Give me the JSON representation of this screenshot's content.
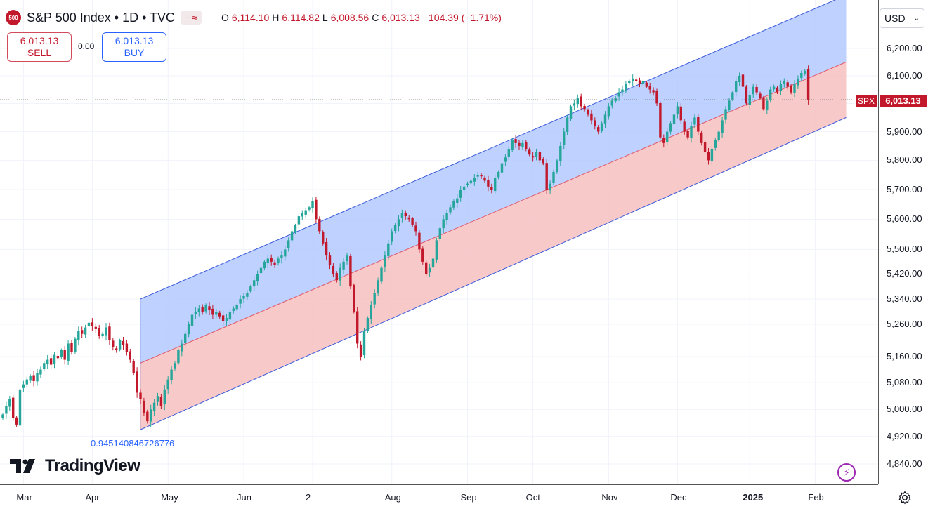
{
  "header": {
    "badge": "500",
    "title": "S&P 500 Index • 1D • TVC",
    "ohlc": [
      {
        "k": "O",
        "v": "6,114.10"
      },
      {
        "k": "H",
        "v": "6,114.82"
      },
      {
        "k": "L",
        "v": "6,008.56"
      },
      {
        "k": "C",
        "v": "6,013.13"
      }
    ],
    "change": "−104.39 (−1.71%)"
  },
  "trade": {
    "sell_price": "6,013.13",
    "sell_label": "SELL",
    "spread": "0.00",
    "buy_price": "6,013.13",
    "buy_label": "BUY"
  },
  "axis": {
    "currency": "USD",
    "symbol_tag": "SPX",
    "last_price": "6,013.13"
  },
  "regression_label": "0.945140846726776",
  "logo_text": "TradingView",
  "colors": {
    "up": "#089981",
    "down": "#f23645",
    "bull_body": "#26a69a",
    "bear_body": "#c2182b",
    "upper_channel": "#b3c9ff",
    "lower_channel": "#f7c3c3",
    "channel_line": "#3b5bdb",
    "mid_line": "#e05a6b"
  },
  "chart_data": {
    "type": "candlestick",
    "title": "S&P 500 Index",
    "timeframe": "1D",
    "y_scale": "log",
    "ylim": [
      4780,
      6300
    ],
    "y_ticks": [
      4840,
      4920,
      5000,
      5080,
      5160,
      5260,
      5340,
      5420,
      5500,
      5600,
      5700,
      5800,
      5900,
      6000,
      6100,
      6200
    ],
    "y_tick_labels": [
      "4,840.00",
      "4,920.00",
      "5,000.00",
      "5,080.00",
      "5,160.00",
      "5,260.00",
      "5,340.00",
      "5,420.00",
      "5,500.00",
      "5,600.00",
      "5,700.00",
      "5,800.00",
      "5,900.00",
      "6,000.00",
      "6,100.00",
      "6,200.00"
    ],
    "x_ticks": [
      {
        "label": "Mar",
        "bar": 6
      },
      {
        "label": "Apr",
        "bar": 26
      },
      {
        "label": "May",
        "bar": 48
      },
      {
        "label": "Jun",
        "bar": 70
      },
      {
        "label": "2",
        "bar": 90
      },
      {
        "label": "Aug",
        "bar": 113
      },
      {
        "label": "Sep",
        "bar": 135
      },
      {
        "label": "Oct",
        "bar": 154
      },
      {
        "label": "Nov",
        "bar": 176
      },
      {
        "label": "Dec",
        "bar": 196
      },
      {
        "label": "2025",
        "bar": 217,
        "bold": true
      },
      {
        "label": "Feb",
        "bar": 236
      }
    ],
    "closes": [
      4985,
      5010,
      5030,
      4975,
      4955,
      5060,
      5075,
      5090,
      5100,
      5085,
      5110,
      5120,
      5140,
      5150,
      5135,
      5165,
      5155,
      5180,
      5150,
      5200,
      5175,
      5215,
      5240,
      5230,
      5250,
      5265,
      5255,
      5245,
      5225,
      5230,
      5250,
      5210,
      5190,
      5180,
      5210,
      5195,
      5175,
      5150,
      5110,
      5050,
      5030,
      4990,
      4965,
      5000,
      5020,
      5040,
      5010,
      5060,
      5090,
      5120,
      5140,
      5180,
      5200,
      5230,
      5260,
      5290,
      5300,
      5310,
      5300,
      5320,
      5305,
      5290,
      5300,
      5285,
      5270,
      5280,
      5300,
      5310,
      5320,
      5340,
      5350,
      5360,
      5380,
      5400,
      5420,
      5440,
      5460,
      5470,
      5460,
      5450,
      5470,
      5480,
      5500,
      5530,
      5560,
      5580,
      5610,
      5620,
      5630,
      5640,
      5660,
      5600,
      5560,
      5520,
      5480,
      5450,
      5420,
      5400,
      5440,
      5460,
      5480,
      5380,
      5300,
      5200,
      5160,
      5240,
      5280,
      5320,
      5360,
      5400,
      5440,
      5480,
      5520,
      5560,
      5580,
      5600,
      5620,
      5610,
      5600,
      5580,
      5560,
      5500,
      5460,
      5420,
      5440,
      5470,
      5530,
      5570,
      5600,
      5620,
      5640,
      5660,
      5670,
      5700,
      5710,
      5720,
      5730,
      5740,
      5750,
      5745,
      5730,
      5710,
      5700,
      5740,
      5760,
      5790,
      5810,
      5840,
      5870,
      5860,
      5850,
      5860,
      5840,
      5820,
      5810,
      5830,
      5800,
      5790,
      5700,
      5720,
      5760,
      5800,
      5850,
      5900,
      5950,
      5990,
      6000,
      6020,
      5990,
      5980,
      5960,
      5940,
      5920,
      5900,
      5930,
      5960,
      5990,
      6010,
      6020,
      6040,
      6050,
      6070,
      6080,
      6090,
      6080,
      6070,
      6080,
      6060,
      6050,
      6040,
      6000,
      5880,
      5860,
      5900,
      5930,
      5960,
      5990,
      5940,
      5900,
      5880,
      5920,
      5950,
      5900,
      5860,
      5830,
      5800,
      5840,
      5870,
      5900,
      5940,
      5980,
      6010,
      6040,
      6080,
      6100,
      6060,
      6000,
      6030,
      6060,
      6040,
      6020,
      5980,
      6010,
      6050,
      6060,
      6040,
      6070,
      6080,
      6060,
      6040,
      6070,
      6090,
      6110,
      6118,
      6013
    ],
    "regression_channel": {
      "label": "0.945140846726776",
      "start_bar": 40,
      "end_bar": 245,
      "lower_start": 4940,
      "mid_start": 5140,
      "upper_start": 5340,
      "lower_end": 5950,
      "mid_end": 6150,
      "upper_end": 6400
    },
    "last_close": 6013.13
  }
}
